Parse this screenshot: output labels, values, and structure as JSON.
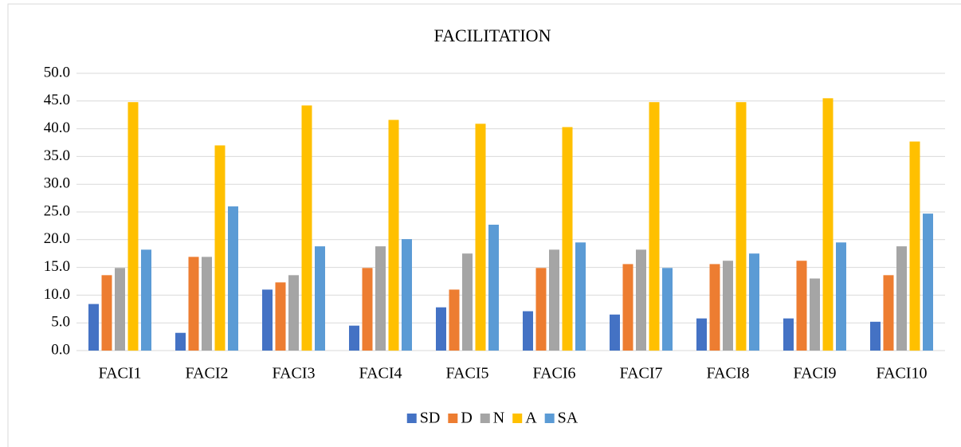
{
  "chart_data": {
    "type": "bar",
    "title": "FACILITATION",
    "categories": [
      "FACI1",
      "FACI2",
      "FACI3",
      "FACI4",
      "FACI5",
      "FACI6",
      "FACI7",
      "FACI8",
      "FACI9",
      "FACI10"
    ],
    "series": [
      {
        "name": "SD",
        "color": "#4472c4",
        "values": [
          8.4,
          3.2,
          11.0,
          4.5,
          7.8,
          7.1,
          6.5,
          5.8,
          5.8,
          5.2
        ]
      },
      {
        "name": "D",
        "color": "#ed7d31",
        "values": [
          13.6,
          16.9,
          12.3,
          14.9,
          11.0,
          14.9,
          15.6,
          15.6,
          16.2,
          13.6
        ]
      },
      {
        "name": "N",
        "color": "#a5a5a5",
        "values": [
          14.9,
          16.9,
          13.6,
          18.8,
          17.5,
          18.2,
          18.2,
          16.2,
          13.0,
          18.8
        ]
      },
      {
        "name": "A",
        "color": "#ffc000",
        "values": [
          44.8,
          37.0,
          44.2,
          41.6,
          40.9,
          40.3,
          44.8,
          44.8,
          45.5,
          37.7
        ]
      },
      {
        "name": "SA",
        "color": "#5b9bd5",
        "values": [
          18.2,
          26.0,
          18.8,
          20.1,
          22.7,
          19.5,
          14.9,
          17.5,
          19.5,
          24.7
        ]
      }
    ],
    "ylim": [
      0,
      50
    ],
    "yticks": [
      {
        "value": 0,
        "label": "0.0"
      },
      {
        "value": 5,
        "label": "5.0"
      },
      {
        "value": 10,
        "label": "10.0"
      },
      {
        "value": 15,
        "label": "15.0"
      },
      {
        "value": 20,
        "label": "20.0"
      },
      {
        "value": 25,
        "label": "25.0"
      },
      {
        "value": 30,
        "label": "30.0"
      },
      {
        "value": 35,
        "label": "35.0"
      },
      {
        "value": 40,
        "label": "40.0"
      },
      {
        "value": 45,
        "label": "45.0"
      },
      {
        "value": 50,
        "label": "50.0"
      }
    ],
    "grid": true,
    "legend": "bottom"
  }
}
